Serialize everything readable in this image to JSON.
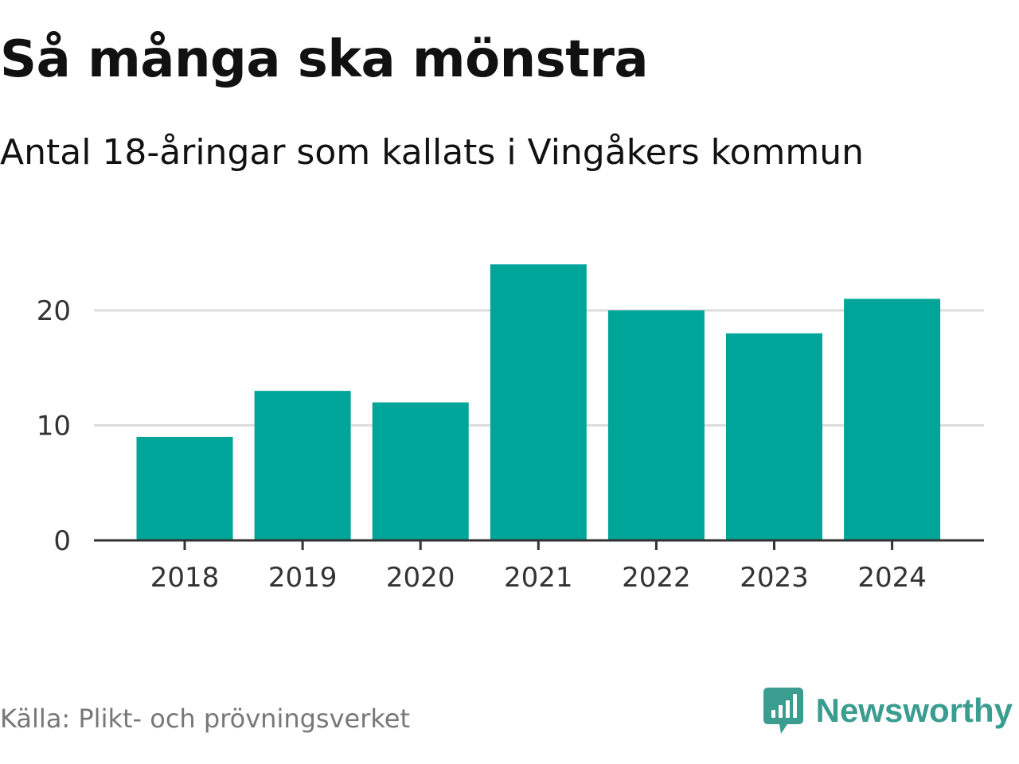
{
  "header": {
    "title": "Så många ska mönstra",
    "subtitle": "Antal 18-åringar som kallats i Vingåkers kommun"
  },
  "footer": {
    "source": "Källa: Plikt- och prövningsverket",
    "brand_name": "Newsworthy",
    "brand_icon": "newsworthy-logo-icon",
    "brand_color": "#3a9d8f"
  },
  "chart_data": {
    "type": "bar",
    "categories": [
      "2018",
      "2019",
      "2020",
      "2021",
      "2022",
      "2023",
      "2024"
    ],
    "values": [
      9,
      13,
      12,
      24,
      20,
      18,
      21
    ],
    "yticks": [
      0,
      10,
      20
    ],
    "ylim": [
      0,
      26
    ],
    "grid": true,
    "bar_color": "#00a59a",
    "grid_color": "#dddddd",
    "axis_color": "#333333"
  }
}
